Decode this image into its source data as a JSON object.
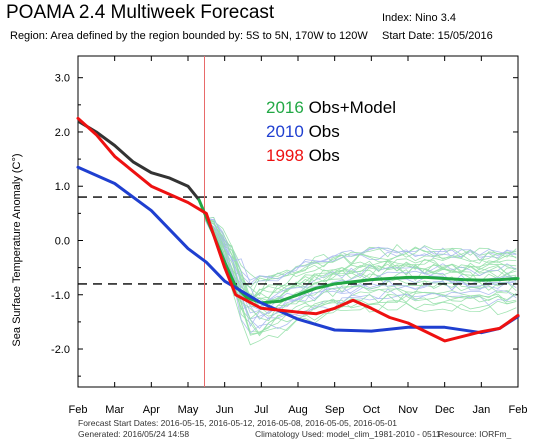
{
  "header": {
    "title": "POAMA 2.4 Multiweek Forecast",
    "region": "Region: Area defined by the region bounded by: 5S to 5N, 170W to 120W",
    "index": "Index: Nino 3.4",
    "start_date": "Start Date: 15/05/2016"
  },
  "footer": {
    "forecast_dates": "Forecast Start Dates: 2016-05-15, 2016-05-12, 2016-05-08, 2016-05-05, 2016-05-01",
    "generated": "Generated: 2016/05/24 14:58",
    "climatology": "Climatology Used: model_clim_1981-2010 - 0511",
    "resource": "Resource: IORFm_"
  },
  "legend": [
    {
      "year": "2016",
      "label": "Obs+Model",
      "color": "#22a845"
    },
    {
      "year": "2010",
      "label": "Obs",
      "color": "#1f3fd0"
    },
    {
      "year": "1998",
      "label": "Obs",
      "color": "#ee1111"
    }
  ],
  "chart_data": {
    "type": "line",
    "ylabel": "Sea Surface Temperature Anomaly (C°)",
    "x_ticks": [
      "Feb",
      "Mar",
      "Apr",
      "May",
      "Jun",
      "Jul",
      "Aug",
      "Sep",
      "Oct",
      "Nov",
      "Dec",
      "Jan",
      "Feb"
    ],
    "ylim": [
      -2.7,
      3.4
    ],
    "y_ticks": [
      -2.0,
      -1.0,
      0.0,
      1.0,
      2.0,
      3.0
    ],
    "y_tick_labels": [
      "-2.0",
      "-1.0",
      "0.0",
      "1.0",
      "2.0",
      "3.0"
    ],
    "thresholds": [
      0.8,
      -0.8
    ],
    "start_marker_x": 3.45,
    "observed_2016": {
      "x": [
        0,
        0.5,
        1,
        1.5,
        2,
        2.5,
        3,
        3.3
      ],
      "y": [
        2.2,
        2.0,
        1.75,
        1.45,
        1.25,
        1.15,
        1.0,
        0.75
      ],
      "color": "#333333"
    },
    "series": [
      {
        "name": "2016 Obs+Model",
        "color": "#22a845",
        "x": [
          3.3,
          3.7,
          4.0,
          4.3,
          4.6,
          5.0,
          5.5,
          6.0,
          6.5,
          7.0,
          7.5,
          8.0,
          8.5,
          9.0,
          9.5,
          10.0,
          10.5,
          11.0,
          11.5,
          12.0
        ],
        "y": [
          0.75,
          0.1,
          -0.4,
          -0.85,
          -1.05,
          -1.15,
          -1.12,
          -1.0,
          -0.88,
          -0.8,
          -0.76,
          -0.72,
          -0.7,
          -0.68,
          -0.68,
          -0.7,
          -0.72,
          -0.73,
          -0.72,
          -0.7
        ]
      },
      {
        "name": "2010 Obs",
        "color": "#1f3fd0",
        "x": [
          0,
          1,
          2,
          3,
          3.5,
          4,
          5,
          6,
          7,
          8,
          9,
          10,
          11,
          11.5,
          12
        ],
        "y": [
          1.35,
          1.05,
          0.55,
          -0.15,
          -0.4,
          -0.75,
          -1.15,
          -1.45,
          -1.65,
          -1.67,
          -1.6,
          -1.6,
          -1.7,
          -1.62,
          -1.4
        ]
      },
      {
        "name": "1998 Obs",
        "color": "#ee1111",
        "x": [
          0,
          0.5,
          1,
          2,
          3,
          3.5,
          4,
          4.3,
          5,
          6,
          6.5,
          7,
          7.5,
          8,
          8.5,
          9,
          10,
          11,
          11.5,
          12
        ],
        "y": [
          2.25,
          1.95,
          1.55,
          1.0,
          0.7,
          0.5,
          -0.5,
          -1.0,
          -1.25,
          -1.32,
          -1.35,
          -1.25,
          -1.1,
          -1.25,
          -1.42,
          -1.52,
          -1.85,
          -1.68,
          -1.62,
          -1.38
        ]
      }
    ],
    "ensemble": {
      "members": 33,
      "x_start": 3.45,
      "x_end": 12,
      "anchor_y": 0.4,
      "colors": [
        "#95e0a8",
        "#a8b8f0"
      ]
    }
  }
}
